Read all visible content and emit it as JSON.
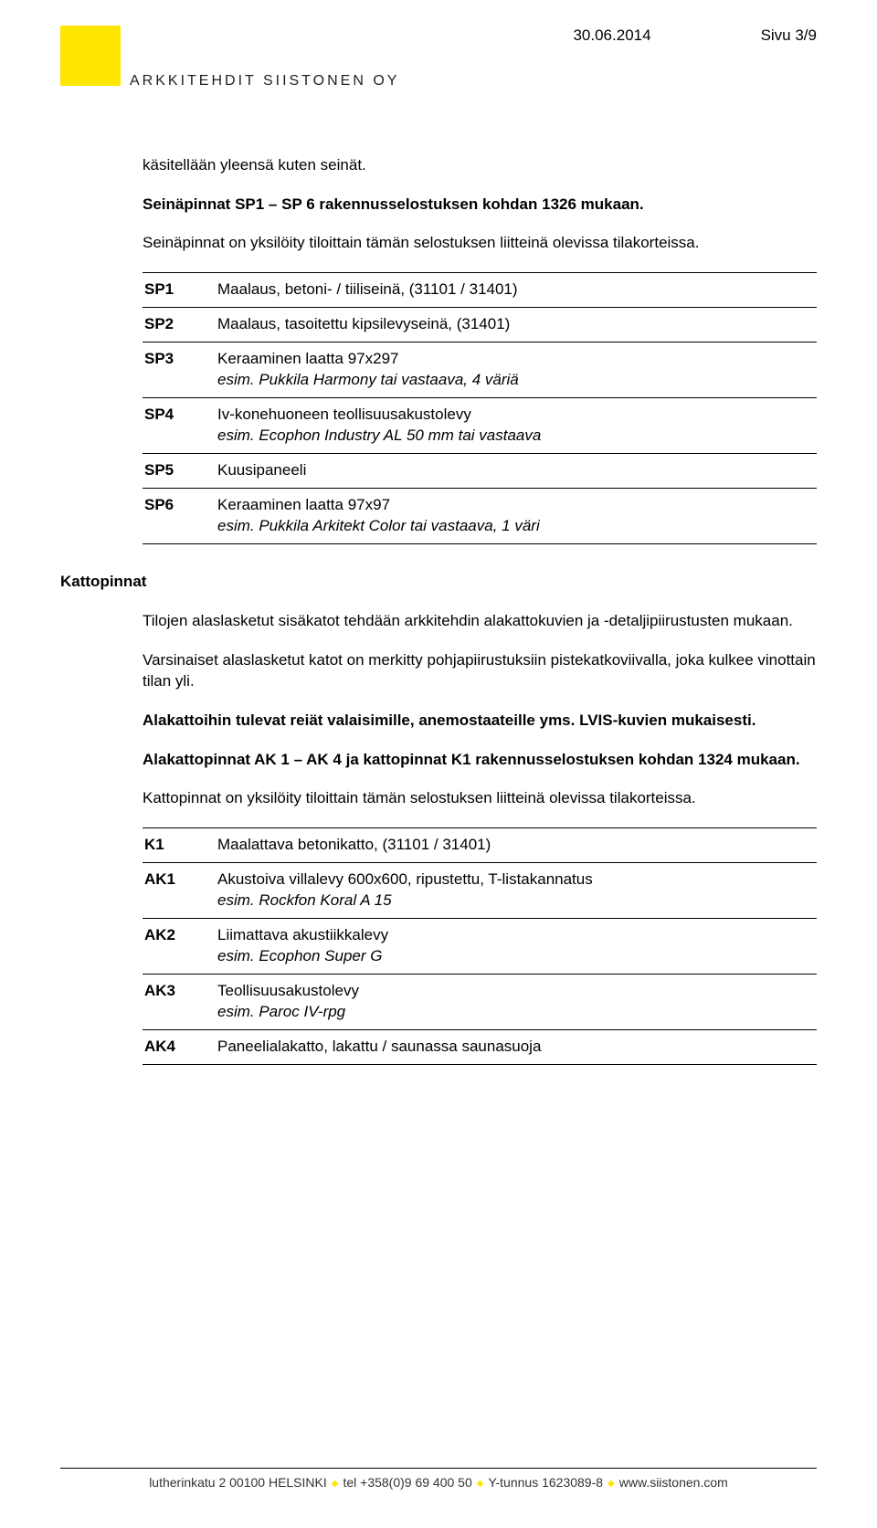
{
  "header": {
    "date": "30.06.2014",
    "page": "Sivu 3/9",
    "company": "ARKKITEHDIT SIISTONEN OY"
  },
  "intro": {
    "p1": "käsitellään yleensä kuten seinät.",
    "p2": "Seinäpinnat SP1 – SP 6 rakennusselostuksen kohdan 1326 mukaan.",
    "p3": "Seinäpinnat on yksilöity tiloittain tämän selostuksen liitteinä olevissa tilakorteissa."
  },
  "table1": [
    {
      "code": "SP1",
      "desc": "Maalaus, betoni- / tiiliseinä, (31101 / 31401)",
      "note": ""
    },
    {
      "code": "SP2",
      "desc": "Maalaus, tasoitettu kipsilevyseinä, (31401)",
      "note": ""
    },
    {
      "code": "SP3",
      "desc": "Keraaminen laatta 97x297",
      "note": "esim. Pukkila Harmony tai vastaava, 4 väriä"
    },
    {
      "code": "SP4",
      "desc": "Iv-konehuoneen teollisuusakustolevy",
      "note": "esim. Ecophon Industry AL 50 mm tai vastaava"
    },
    {
      "code": "SP5",
      "desc": "Kuusipaneeli",
      "note": ""
    },
    {
      "code": "SP6",
      "desc": "Keraaminen laatta 97x97",
      "note": "esim. Pukkila Arkitekt Color tai vastaava, 1 väri"
    }
  ],
  "section_label": "Kattopinnat",
  "section2": {
    "p1": "Tilojen alaslasketut sisäkatot tehdään arkkitehdin alakattokuvien ja -detaljipiirustusten mukaan.",
    "p2": "Varsinaiset alaslasketut katot on merkitty pohjapiirustuksiin pistekatkoviivalla, joka kulkee vinottain tilan yli.",
    "p3": "Alakattoihin tulevat reiät valaisimille, anemostaateille yms. LVIS-kuvien mukaisesti.",
    "p4": "Alakattopinnat AK 1 – AK 4 ja  kattopinnat K1 rakennusselostuksen kohdan 1324 mukaan.",
    "p5": "Kattopinnat on yksilöity tiloittain tämän selostuksen liitteinä olevissa tilakorteissa."
  },
  "table2": [
    {
      "code": "K1",
      "desc": "Maalattava betonikatto, (31101 / 31401)",
      "note": ""
    },
    {
      "code": "AK1",
      "desc": "Akustoiva villalevy 600x600, ripustettu, T-listakannatus",
      "note": "esim. Rockfon Koral A 15"
    },
    {
      "code": "AK2",
      "desc": "Liimattava akustiikkalevy",
      "note": "esim. Ecophon Super G"
    },
    {
      "code": "AK3",
      "desc": "Teollisuusakustolevy",
      "note": "esim. Paroc IV-rpg"
    },
    {
      "code": "AK4",
      "desc": "Paneelialakatto, lakattu / saunassa saunasuoja",
      "note": ""
    }
  ],
  "footer": {
    "seg1": "lutherinkatu  2  00100  HELSINKI",
    "seg2": "tel +358(0)9 69 400 50",
    "seg3": "Y-tunnus 1623089-8",
    "seg4": "www.siistonen.com"
  }
}
